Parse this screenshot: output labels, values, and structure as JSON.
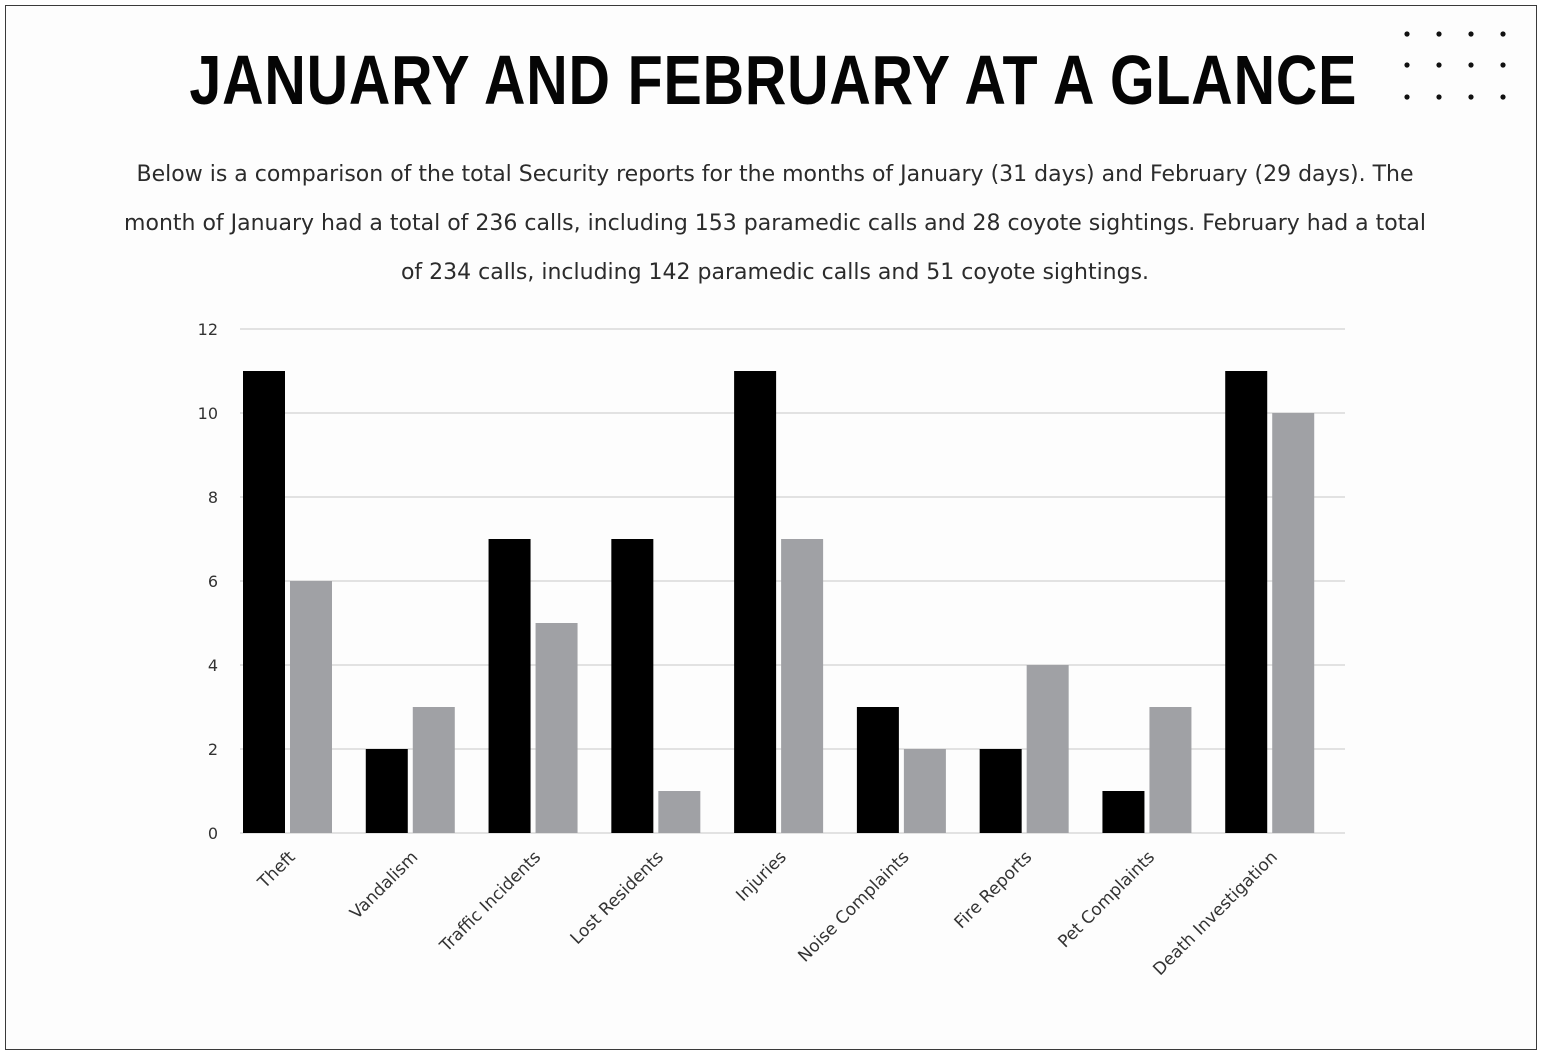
{
  "page": {
    "title": "JANUARY AND FEBRUARY AT A GLANCE",
    "subtitle": "Below is a comparison of the total Security reports for the months of  January (31 days) and February (29 days).  The  month of January had a total of 236 calls, including 153 paramedic calls and 28 coyote sightings. February had a total of 234 calls, including 142 paramedic calls and 51 coyote sightings.",
    "decoration_icon": "dot-grid-icon"
  },
  "colors": {
    "background": "#ffffff",
    "january": "#000000",
    "february": "#a0a1a5",
    "gridline": "#d9d9d9",
    "text": "#2b2b2b"
  },
  "chart_data": {
    "type": "bar",
    "title": "",
    "xlabel": "",
    "ylabel": "",
    "categories": [
      "Theft",
      "Vandalism",
      "Traffic Incidents",
      "Lost Residents",
      "Injuries",
      "Noise Complaints",
      "Fire Reports",
      "Pet Complaints",
      "Death Investigation"
    ],
    "series": [
      {
        "values": [
          11,
          2,
          7,
          7,
          11,
          3,
          2,
          1,
          11
        ],
        "color": "#000000"
      },
      {
        "values": [
          6,
          3,
          5,
          1,
          7,
          2,
          4,
          3,
          10
        ],
        "color": "#a0a1a5"
      }
    ],
    "ylim": [
      0,
      12
    ],
    "yticks": [
      0,
      2,
      4,
      6,
      8,
      10,
      12
    ],
    "grid": true,
    "legend": "none"
  }
}
